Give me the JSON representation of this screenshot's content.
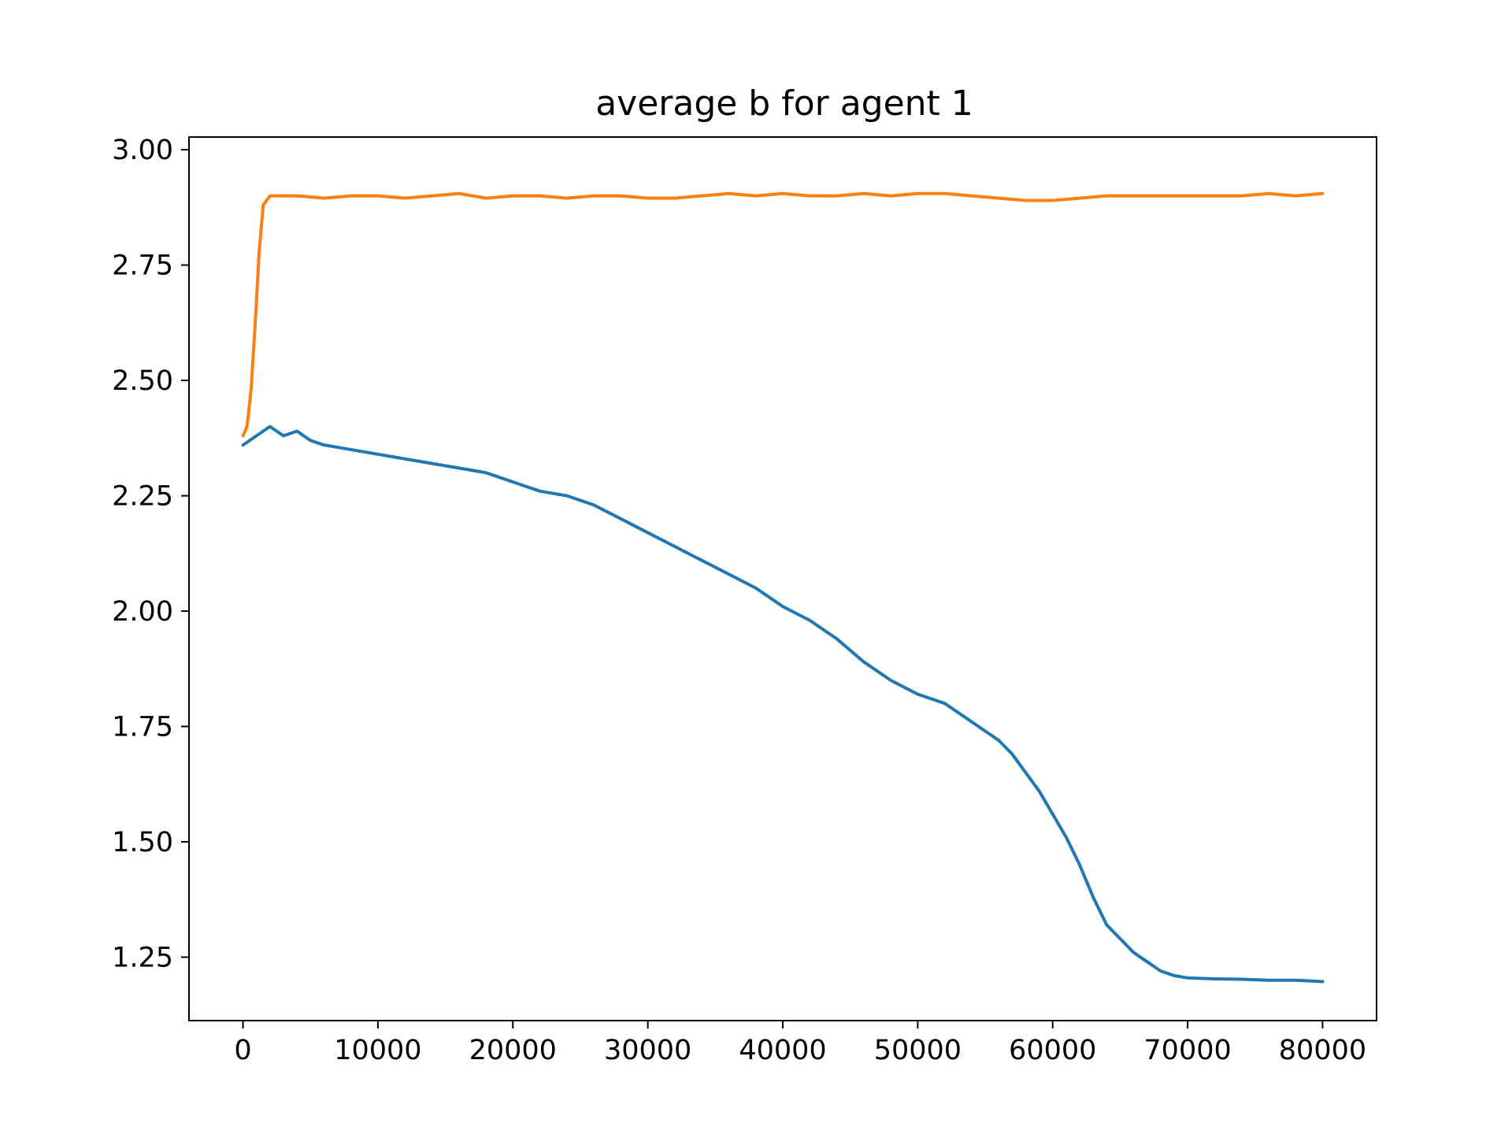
{
  "chart_data": {
    "type": "line",
    "title": "average b for agent 1",
    "xlabel": "",
    "ylabel": "",
    "xlim": [
      -4000,
      84000
    ],
    "ylim": [
      1.1125,
      3.0275
    ],
    "x_ticks": [
      0,
      10000,
      20000,
      30000,
      40000,
      50000,
      60000,
      70000,
      80000
    ],
    "x_tick_labels": [
      "0",
      "10000",
      "20000",
      "30000",
      "40000",
      "50000",
      "60000",
      "70000",
      "80000"
    ],
    "y_ticks": [
      1.25,
      1.5,
      1.75,
      2.0,
      2.25,
      2.5,
      2.75,
      3.0
    ],
    "y_tick_labels": [
      "1.25",
      "1.50",
      "1.75",
      "2.00",
      "2.25",
      "2.50",
      "2.75",
      "3.00"
    ],
    "grid": false,
    "legend": "none",
    "series": [
      {
        "color": "#1f77b4",
        "points": [
          [
            0,
            2.36
          ],
          [
            1000,
            2.38
          ],
          [
            2000,
            2.4
          ],
          [
            3000,
            2.38
          ],
          [
            4000,
            2.39
          ],
          [
            5000,
            2.37
          ],
          [
            6000,
            2.36
          ],
          [
            8000,
            2.35
          ],
          [
            10000,
            2.34
          ],
          [
            12000,
            2.33
          ],
          [
            14000,
            2.32
          ],
          [
            16000,
            2.31
          ],
          [
            18000,
            2.3
          ],
          [
            20000,
            2.28
          ],
          [
            22000,
            2.26
          ],
          [
            24000,
            2.25
          ],
          [
            26000,
            2.23
          ],
          [
            28000,
            2.2
          ],
          [
            30000,
            2.17
          ],
          [
            32000,
            2.14
          ],
          [
            34000,
            2.11
          ],
          [
            36000,
            2.08
          ],
          [
            38000,
            2.05
          ],
          [
            40000,
            2.01
          ],
          [
            42000,
            1.98
          ],
          [
            44000,
            1.94
          ],
          [
            46000,
            1.89
          ],
          [
            48000,
            1.85
          ],
          [
            50000,
            1.82
          ],
          [
            52000,
            1.8
          ],
          [
            54000,
            1.76
          ],
          [
            56000,
            1.72
          ],
          [
            57000,
            1.69
          ],
          [
            58000,
            1.65
          ],
          [
            59000,
            1.61
          ],
          [
            60000,
            1.56
          ],
          [
            61000,
            1.51
          ],
          [
            62000,
            1.45
          ],
          [
            63000,
            1.38
          ],
          [
            64000,
            1.32
          ],
          [
            65000,
            1.29
          ],
          [
            66000,
            1.26
          ],
          [
            67000,
            1.24
          ],
          [
            68000,
            1.22
          ],
          [
            69000,
            1.21
          ],
          [
            70000,
            1.205
          ],
          [
            72000,
            1.203
          ],
          [
            74000,
            1.202
          ],
          [
            76000,
            1.2
          ],
          [
            78000,
            1.2
          ],
          [
            80000,
            1.197
          ]
        ]
      },
      {
        "color": "#ff7f0e",
        "points": [
          [
            0,
            2.38
          ],
          [
            300,
            2.4
          ],
          [
            600,
            2.48
          ],
          [
            900,
            2.62
          ],
          [
            1200,
            2.78
          ],
          [
            1500,
            2.88
          ],
          [
            2000,
            2.9
          ],
          [
            4000,
            2.9
          ],
          [
            6000,
            2.895
          ],
          [
            8000,
            2.9
          ],
          [
            10000,
            2.9
          ],
          [
            12000,
            2.895
          ],
          [
            14000,
            2.9
          ],
          [
            16000,
            2.905
          ],
          [
            18000,
            2.895
          ],
          [
            20000,
            2.9
          ],
          [
            22000,
            2.9
          ],
          [
            24000,
            2.895
          ],
          [
            26000,
            2.9
          ],
          [
            28000,
            2.9
          ],
          [
            30000,
            2.895
          ],
          [
            32000,
            2.895
          ],
          [
            34000,
            2.9
          ],
          [
            36000,
            2.905
          ],
          [
            38000,
            2.9
          ],
          [
            40000,
            2.905
          ],
          [
            42000,
            2.9
          ],
          [
            44000,
            2.9
          ],
          [
            46000,
            2.905
          ],
          [
            48000,
            2.9
          ],
          [
            50000,
            2.905
          ],
          [
            52000,
            2.905
          ],
          [
            54000,
            2.9
          ],
          [
            56000,
            2.895
          ],
          [
            58000,
            2.89
          ],
          [
            60000,
            2.89
          ],
          [
            62000,
            2.895
          ],
          [
            64000,
            2.9
          ],
          [
            66000,
            2.9
          ],
          [
            68000,
            2.9
          ],
          [
            70000,
            2.9
          ],
          [
            72000,
            2.9
          ],
          [
            74000,
            2.9
          ],
          [
            76000,
            2.905
          ],
          [
            78000,
            2.9
          ],
          [
            80000,
            2.905
          ]
        ]
      }
    ]
  }
}
